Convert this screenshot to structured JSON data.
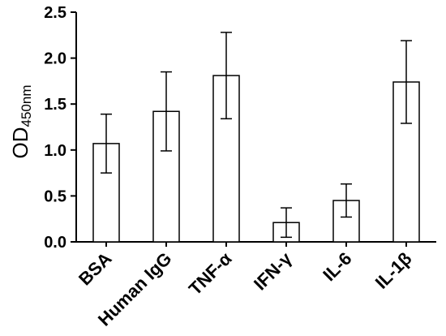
{
  "chart_data": {
    "type": "bar",
    "title": "",
    "xlabel": "",
    "ylabel": "OD",
    "ylabel_subscript": "450nm",
    "ylim": [
      0,
      2.5
    ],
    "yticks": [
      "0.0",
      "0.5",
      "1.0",
      "1.5",
      "2.0",
      "2.5"
    ],
    "grid": false,
    "legend": "none",
    "categories": [
      "BSA",
      "Human IgG",
      "TNF-α",
      "IFN-γ",
      "IL-6",
      "IL-1β"
    ],
    "values": [
      1.07,
      1.42,
      1.81,
      0.21,
      0.45,
      1.74
    ],
    "error_low": [
      0.75,
      0.99,
      1.34,
      0.05,
      0.27,
      1.29
    ],
    "error_high": [
      1.39,
      1.85,
      2.28,
      0.37,
      0.63,
      2.19
    ],
    "bar_fill": "#ffffff",
    "bar_stroke": "#000000"
  }
}
